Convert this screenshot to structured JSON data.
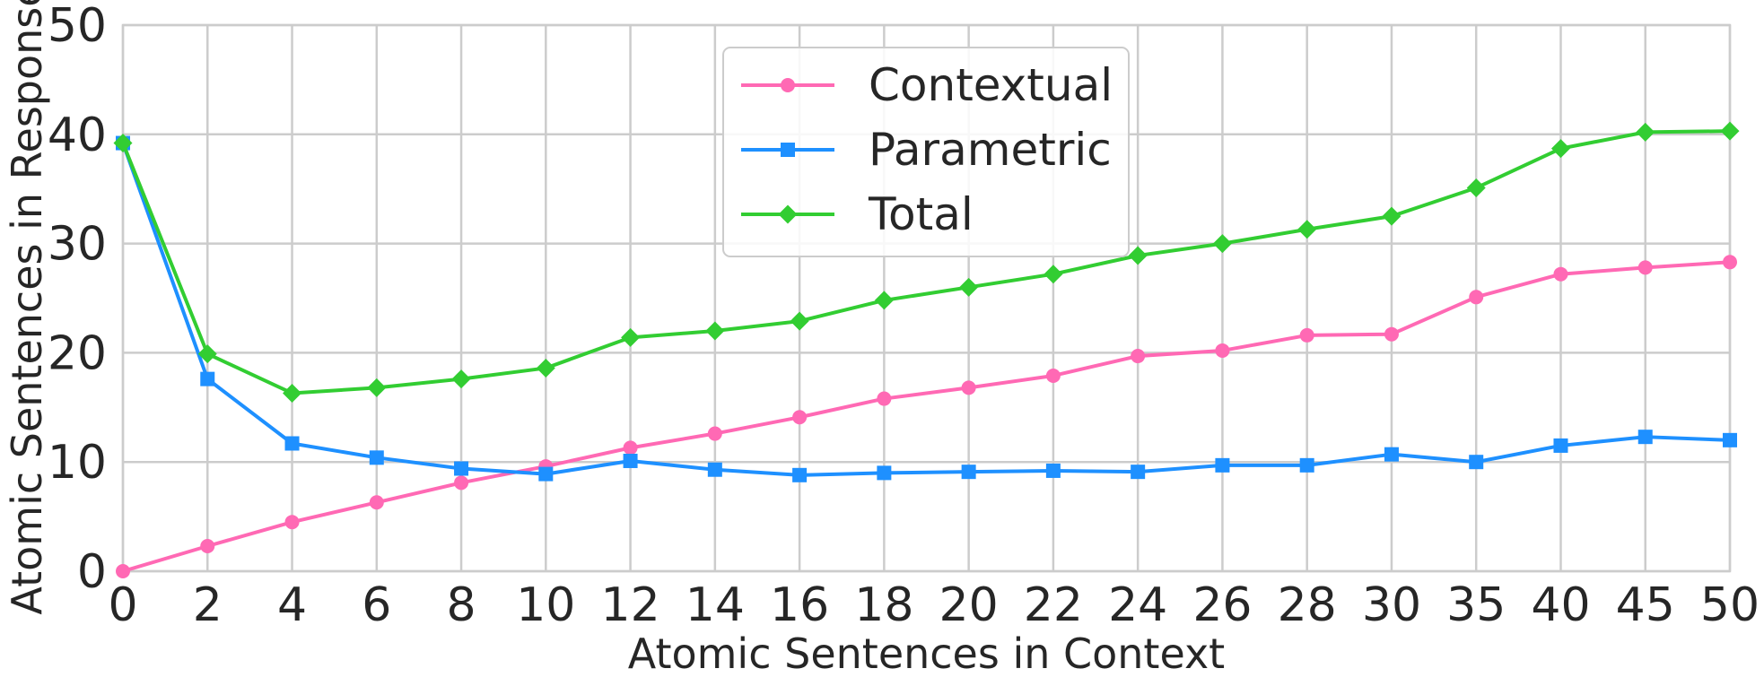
{
  "chart_data": {
    "type": "line",
    "xlabel": "Atomic Sentences in Context",
    "ylabel": "Atomic Sentences in Response",
    "categories": [
      "0",
      "2",
      "4",
      "6",
      "8",
      "10",
      "12",
      "14",
      "16",
      "18",
      "20",
      "22",
      "24",
      "26",
      "28",
      "30",
      "35",
      "40",
      "45",
      "50"
    ],
    "ylim": [
      0,
      50
    ],
    "yticks": [
      "0",
      "10",
      "20",
      "30",
      "40",
      "50"
    ],
    "grid": true,
    "legend_position": "top-center",
    "series": [
      {
        "name": "Contextual",
        "color": "#FF69B4",
        "marker": "circle",
        "values": [
          0,
          2.3,
          4.5,
          6.3,
          8.1,
          9.6,
          11.3,
          12.6,
          14.1,
          15.8,
          16.8,
          17.9,
          19.7,
          20.2,
          21.6,
          21.7,
          25.1,
          27.2,
          27.8,
          28.3
        ]
      },
      {
        "name": "Parametric",
        "color": "#1E90FF",
        "marker": "square",
        "values": [
          39.2,
          17.6,
          11.7,
          10.4,
          9.4,
          8.9,
          10.1,
          9.3,
          8.8,
          9.0,
          9.1,
          9.2,
          9.1,
          9.7,
          9.7,
          10.7,
          10.0,
          11.5,
          12.3,
          12.0
        ]
      },
      {
        "name": "Total",
        "color": "#32CD32",
        "marker": "diamond",
        "values": [
          39.2,
          19.9,
          16.3,
          16.8,
          17.6,
          18.6,
          21.4,
          22.0,
          22.9,
          24.8,
          26.0,
          27.2,
          28.9,
          30.0,
          31.3,
          32.5,
          35.1,
          38.7,
          40.2,
          40.3
        ]
      }
    ]
  }
}
